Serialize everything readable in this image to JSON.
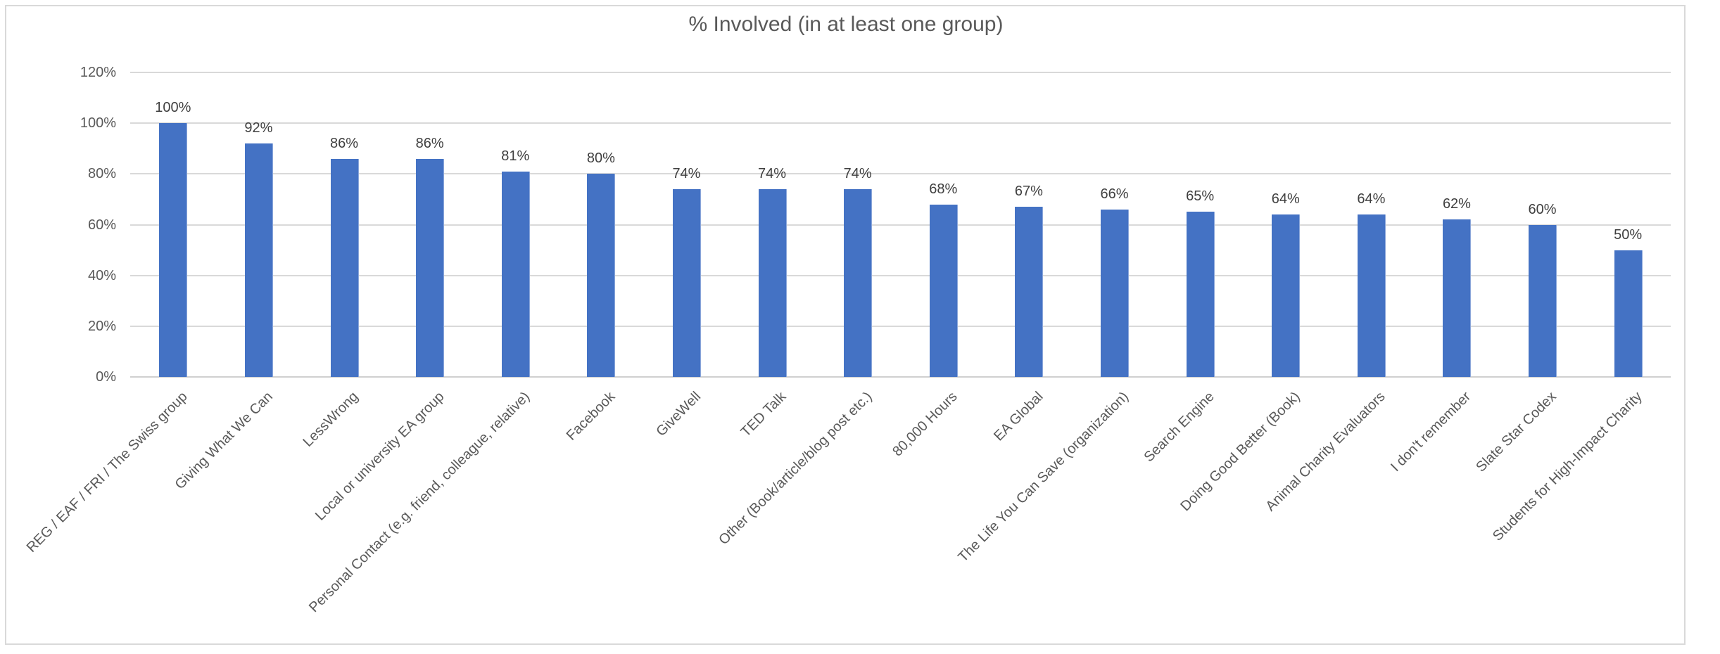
{
  "title": "% Involved (in at least one group)",
  "colors": {
    "bar": "#4472C4",
    "bar_edge": "#8EA9DB",
    "gridline": "#D9D9D9",
    "axis_line": "#D0D0D0",
    "axis_text": "#595959",
    "data_label_text": "#3F3F3F",
    "title_text": "#595959",
    "frame_border": "#D9D9D9",
    "background": "#FFFFFF"
  },
  "chart_data": {
    "type": "bar",
    "title": "% Involved (in at least one group)",
    "categories": [
      "REG / EAF / FRI / The Swiss group",
      "Giving What We Can",
      "LessWrong",
      "Local or university EA group",
      "Personal Contact (e.g. friend, colleague, relative)",
      "Facebook",
      "GiveWell",
      "TED Talk",
      "Other (Book/article/blog post etc.)",
      "80,000 Hours",
      "EA Global",
      "The Life You Can Save (organization)",
      "Search Engine",
      "Doing Good Better (Book)",
      "Animal Charity Evaluators",
      "I don't remember",
      "Slate Star Codex",
      "Students for High-Impact Charity"
    ],
    "values": [
      100,
      92,
      86,
      86,
      81,
      80,
      74,
      74,
      74,
      68,
      67,
      66,
      65,
      64,
      64,
      62,
      60,
      50
    ],
    "value_labels": [
      "100%",
      "92%",
      "86%",
      "86%",
      "81%",
      "80%",
      "74%",
      "74%",
      "74%",
      "68%",
      "67%",
      "66%",
      "65%",
      "64%",
      "64%",
      "62%",
      "60%",
      "50%"
    ],
    "xlabel": "",
    "ylabel": "",
    "ylim": [
      0,
      120
    ],
    "yticks": [
      0,
      20,
      40,
      60,
      80,
      100,
      120
    ],
    "ytick_labels": [
      "0%",
      "20%",
      "40%",
      "60%",
      "80%",
      "100%",
      "120%"
    ],
    "grid": "horizontal",
    "legend": "none",
    "x_label_rotation_deg": 45
  }
}
